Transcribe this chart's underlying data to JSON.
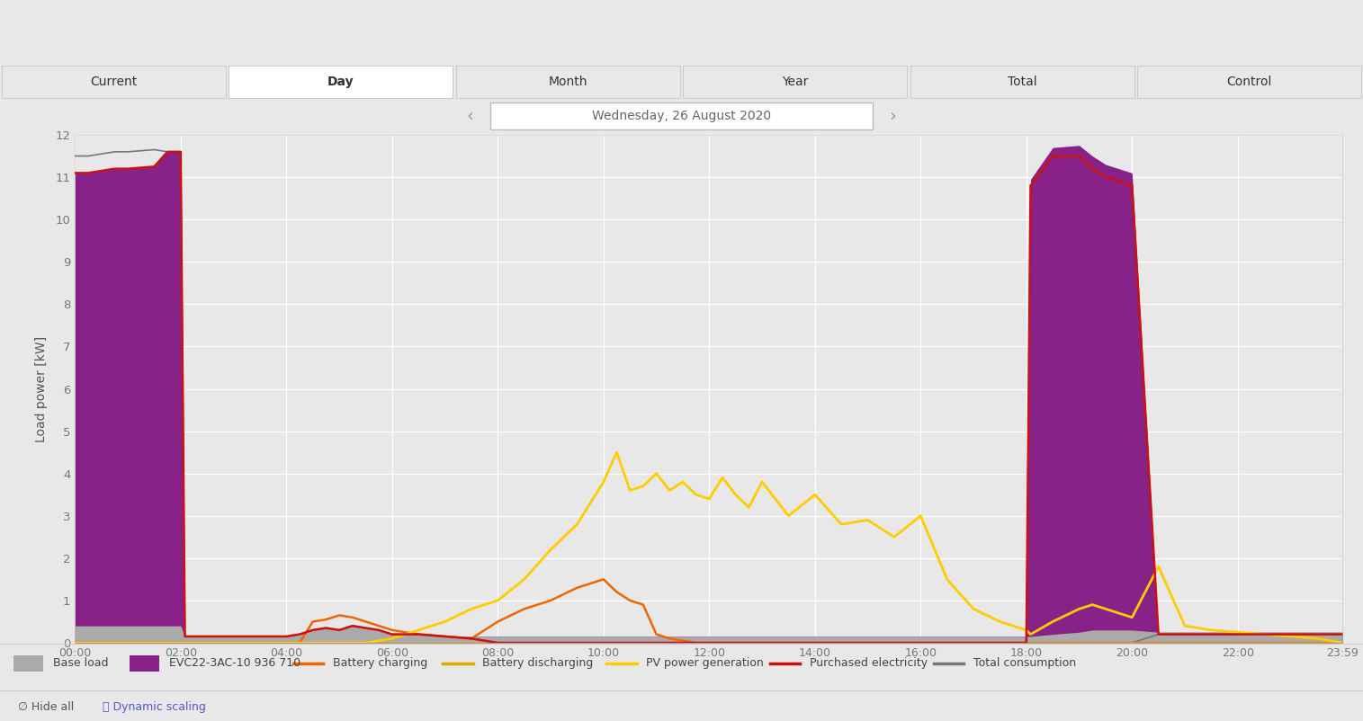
{
  "title_tabs": [
    "Current",
    "Day",
    "Month",
    "Year",
    "Total",
    "Control"
  ],
  "active_tab": "Day",
  "date_label": "Wednesday, 26 August 2020",
  "ylabel": "Load power [kW]",
  "ylim": [
    0,
    12
  ],
  "yticks": [
    0,
    1,
    2,
    3,
    4,
    5,
    6,
    7,
    8,
    9,
    10,
    11,
    12
  ],
  "xtick_vals": [
    0,
    2,
    4,
    6,
    8,
    10,
    12,
    14,
    16,
    18,
    20,
    22,
    23.983
  ],
  "xtick_labels": [
    "00:00",
    "02:00",
    "04:00",
    "06:00",
    "08:00",
    "10:00",
    "12:00",
    "14:00",
    "16:00",
    "18:00",
    "20:00",
    "22:00",
    "23:59"
  ],
  "fig_bg": "#e8e8e8",
  "plot_bg": "#e8e8e8",
  "tab_bg": "#e0e0e0",
  "tab_active_color": "#ffffff",
  "tab_inactive_color": "#e8e8e8",
  "grid_color": "#ffffff",
  "colors": {
    "base_load": "#aaaaaa",
    "evc": "#882288",
    "battery_charging": "#ee6600",
    "battery_discharging": "#ddaa00",
    "pv_power": "#ffcc00",
    "purchased": "#cc1111",
    "total_consumption": "#777777"
  },
  "legend": [
    {
      "label": "Base load",
      "type": "fill",
      "color": "#aaaaaa"
    },
    {
      "label": "EVC22-3AC-10 936 710",
      "type": "fill",
      "color": "#882288"
    },
    {
      "label": "Battery charging",
      "type": "line",
      "color": "#ee6600"
    },
    {
      "label": "Battery discharging",
      "type": "line",
      "color": "#ddaa00"
    },
    {
      "label": "PV power generation",
      "type": "line",
      "color": "#ffcc00"
    },
    {
      "label": "Purchased electricity",
      "type": "line",
      "color": "#cc1111"
    },
    {
      "label": "Total consumption",
      "type": "line",
      "color": "#777777"
    }
  ],
  "time_points": [
    0,
    0.25,
    0.5,
    0.75,
    1.0,
    1.5,
    1.75,
    2.0,
    2.08,
    2.5,
    3.0,
    3.5,
    4.0,
    4.25,
    4.5,
    4.75,
    5.0,
    5.25,
    5.5,
    5.75,
    6.0,
    6.5,
    7.0,
    7.5,
    8.0,
    8.5,
    9.0,
    9.5,
    10.0,
    10.25,
    10.5,
    10.75,
    11.0,
    11.25,
    11.5,
    11.75,
    12.0,
    12.25,
    12.5,
    12.75,
    13.0,
    13.5,
    14.0,
    14.5,
    15.0,
    15.5,
    16.0,
    16.5,
    17.0,
    17.5,
    18.0,
    18.08,
    18.5,
    19.0,
    19.25,
    19.5,
    20.0,
    20.5,
    21.0,
    21.5,
    22.0,
    22.5,
    23.0,
    23.5,
    23.983
  ],
  "base_load": [
    0.4,
    0.4,
    0.4,
    0.4,
    0.4,
    0.4,
    0.4,
    0.4,
    0.15,
    0.15,
    0.15,
    0.15,
    0.15,
    0.2,
    0.3,
    0.35,
    0.3,
    0.4,
    0.35,
    0.3,
    0.2,
    0.2,
    0.15,
    0.15,
    0.15,
    0.15,
    0.15,
    0.15,
    0.15,
    0.15,
    0.15,
    0.15,
    0.15,
    0.15,
    0.15,
    0.15,
    0.15,
    0.15,
    0.15,
    0.15,
    0.15,
    0.15,
    0.15,
    0.15,
    0.15,
    0.15,
    0.15,
    0.15,
    0.15,
    0.15,
    0.15,
    0.15,
    0.2,
    0.25,
    0.3,
    0.3,
    0.3,
    0.25,
    0.25,
    0.25,
    0.25,
    0.25,
    0.25,
    0.25,
    0.25
  ],
  "evc_load": [
    10.7,
    10.7,
    10.75,
    10.8,
    10.8,
    10.85,
    11.2,
    11.2,
    0.0,
    0.0,
    0.0,
    0.0,
    0.0,
    0.0,
    0.0,
    0.0,
    0.0,
    0.0,
    0.0,
    0.0,
    0.0,
    0.0,
    0.0,
    0.0,
    0.0,
    0.0,
    0.0,
    0.0,
    0.0,
    0.0,
    0.0,
    0.0,
    0.0,
    0.0,
    0.0,
    0.0,
    0.0,
    0.0,
    0.0,
    0.0,
    0.0,
    0.0,
    0.0,
    0.0,
    0.0,
    0.0,
    0.0,
    0.0,
    0.0,
    0.0,
    0.0,
    10.8,
    11.5,
    11.5,
    11.2,
    11.0,
    10.8,
    0.0,
    0.0,
    0.0,
    0.0,
    0.0,
    0.0,
    0.0,
    0.0
  ],
  "battery_charging": [
    0.0,
    0.0,
    0.0,
    0.0,
    0.0,
    0.0,
    0.0,
    0.0,
    0.0,
    0.0,
    0.0,
    0.0,
    0.0,
    0.0,
    0.5,
    0.55,
    0.65,
    0.6,
    0.5,
    0.4,
    0.3,
    0.2,
    0.15,
    0.1,
    0.5,
    0.8,
    1.0,
    1.3,
    1.5,
    1.2,
    1.0,
    0.9,
    0.2,
    0.1,
    0.05,
    0.0,
    0.0,
    0.0,
    0.0,
    0.0,
    0.0,
    0.0,
    0.0,
    0.0,
    0.0,
    0.0,
    0.0,
    0.0,
    0.0,
    0.0,
    0.0,
    0.0,
    0.0,
    0.0,
    0.0,
    0.0,
    0.0,
    0.0,
    0.0,
    0.0,
    0.0,
    0.0,
    0.0,
    0.0,
    0.0
  ],
  "battery_discharging": [
    0.0,
    0.0,
    0.0,
    0.0,
    0.0,
    0.0,
    0.0,
    0.0,
    0.0,
    0.0,
    0.0,
    0.0,
    0.0,
    0.0,
    0.0,
    0.0,
    0.0,
    0.0,
    0.0,
    0.0,
    0.0,
    0.0,
    0.0,
    0.0,
    0.0,
    0.0,
    0.0,
    0.0,
    0.0,
    0.0,
    0.0,
    0.0,
    0.0,
    0.0,
    0.0,
    0.0,
    0.0,
    0.0,
    0.0,
    0.0,
    0.0,
    0.0,
    0.0,
    0.0,
    0.0,
    0.0,
    0.0,
    0.0,
    0.0,
    0.0,
    0.0,
    0.0,
    0.0,
    0.0,
    0.0,
    0.0,
    0.0,
    0.0,
    0.0,
    0.0,
    0.0,
    0.0,
    0.0,
    0.0,
    0.0
  ],
  "pv_power": [
    0.0,
    0.0,
    0.0,
    0.0,
    0.0,
    0.0,
    0.0,
    0.0,
    0.0,
    0.0,
    0.0,
    0.0,
    0.0,
    0.0,
    0.0,
    0.0,
    0.0,
    0.0,
    0.0,
    0.05,
    0.1,
    0.3,
    0.5,
    0.8,
    1.0,
    1.5,
    2.2,
    2.8,
    3.8,
    4.5,
    3.6,
    3.7,
    4.0,
    3.6,
    3.8,
    3.5,
    3.4,
    3.9,
    3.5,
    3.2,
    3.8,
    3.0,
    3.5,
    2.8,
    2.9,
    2.5,
    3.0,
    1.5,
    0.8,
    0.5,
    0.3,
    0.2,
    0.5,
    0.8,
    0.9,
    0.8,
    0.6,
    1.8,
    0.4,
    0.3,
    0.25,
    0.2,
    0.15,
    0.1,
    0.0
  ],
  "purchased": [
    11.1,
    11.1,
    11.15,
    11.2,
    11.2,
    11.25,
    11.6,
    11.6,
    0.15,
    0.15,
    0.15,
    0.15,
    0.15,
    0.2,
    0.3,
    0.35,
    0.3,
    0.4,
    0.35,
    0.3,
    0.2,
    0.2,
    0.15,
    0.1,
    0.0,
    0.0,
    0.0,
    0.0,
    0.0,
    0.0,
    0.0,
    0.0,
    0.0,
    0.0,
    0.0,
    0.0,
    0.0,
    0.0,
    0.0,
    0.0,
    0.0,
    0.0,
    0.0,
    0.0,
    0.0,
    0.0,
    0.0,
    0.0,
    0.0,
    0.0,
    0.0,
    10.8,
    11.5,
    11.5,
    11.2,
    11.0,
    10.8,
    0.2,
    0.2,
    0.2,
    0.2,
    0.2,
    0.2,
    0.2,
    0.2
  ],
  "total_consumption": [
    11.5,
    11.5,
    11.55,
    11.6,
    11.6,
    11.65,
    11.6,
    11.6,
    0.15,
    0.15,
    0.15,
    0.15,
    0.15,
    0.2,
    0.3,
    0.35,
    0.3,
    0.4,
    0.35,
    0.3,
    0.2,
    0.2,
    0.15,
    0.1,
    0.0,
    0.0,
    0.0,
    0.0,
    0.0,
    0.0,
    0.0,
    0.0,
    0.0,
    0.0,
    0.0,
    0.0,
    0.0,
    0.0,
    0.0,
    0.0,
    0.0,
    0.0,
    0.0,
    0.0,
    0.0,
    0.0,
    0.0,
    0.0,
    0.0,
    0.0,
    0.0,
    0.0,
    0.0,
    0.0,
    0.0,
    0.0,
    0.0,
    0.2,
    0.2,
    0.2,
    0.2,
    0.2,
    0.2,
    0.2,
    0.2
  ]
}
